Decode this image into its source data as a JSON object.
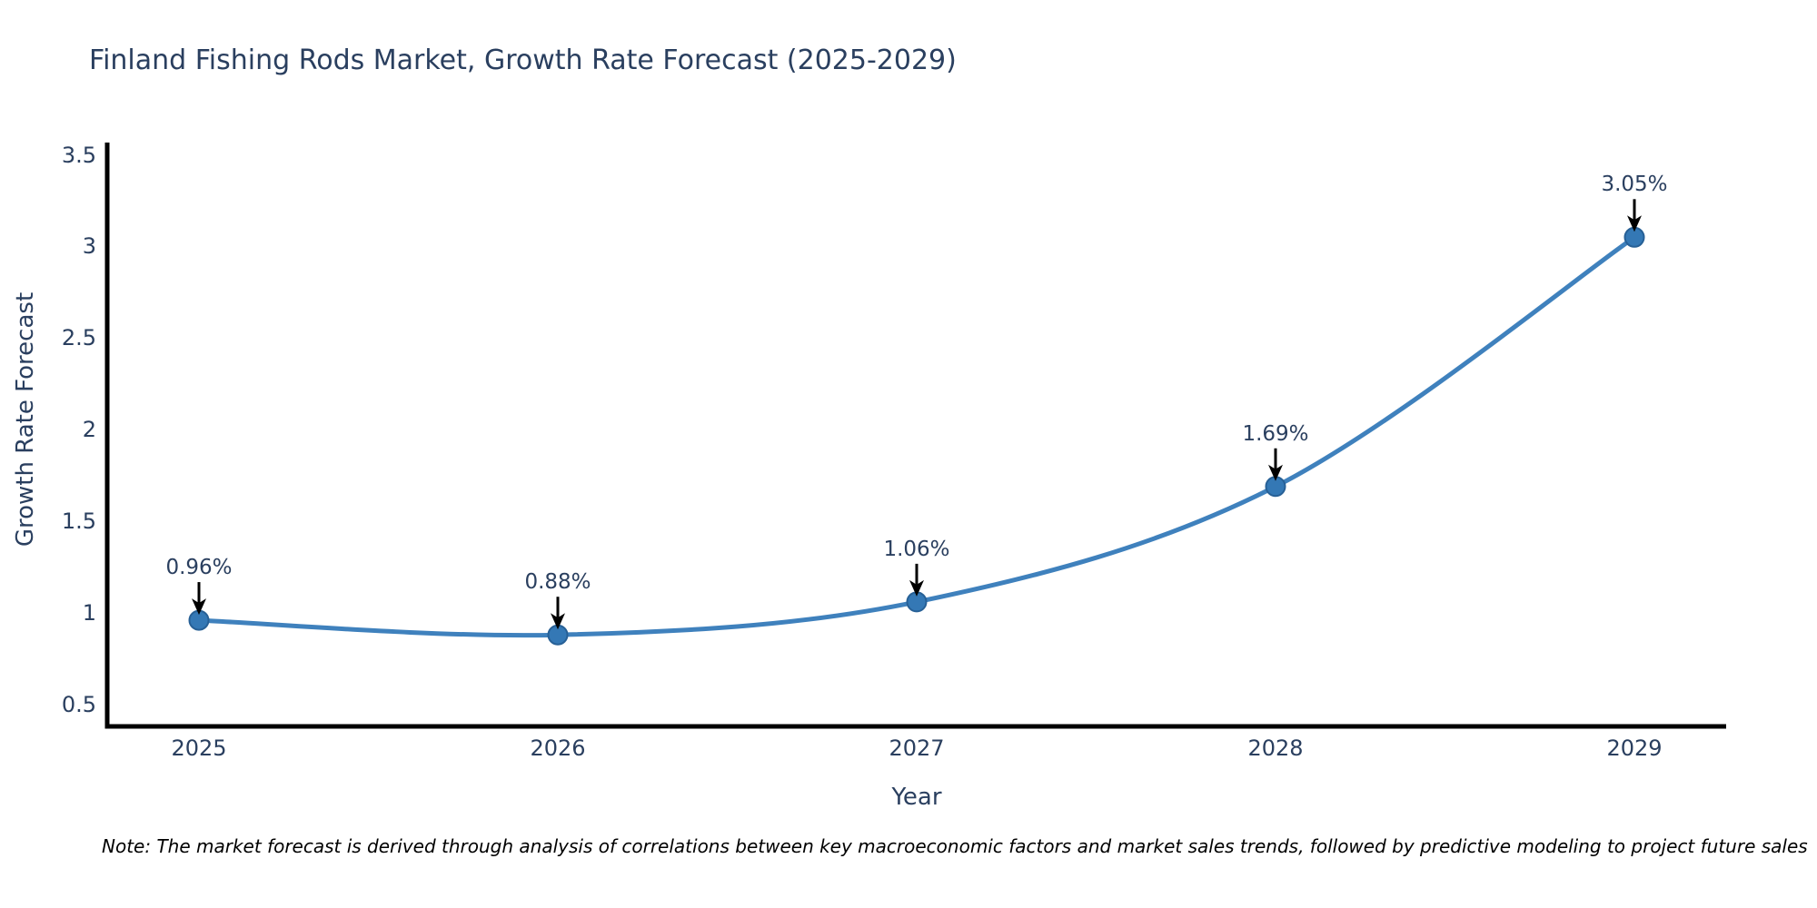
{
  "chart_data": {
    "type": "line",
    "title": "Finland Fishing Rods Market, Growth Rate Forecast (2025-2029)",
    "xlabel": "Year",
    "ylabel": "Growth Rate Forecast",
    "categories": [
      "2025",
      "2026",
      "2027",
      "2028",
      "2029"
    ],
    "values": [
      0.96,
      0.88,
      1.06,
      1.69,
      3.05
    ],
    "point_labels": [
      "0.96%",
      "0.88%",
      "1.06%",
      "1.69%",
      "3.05%"
    ],
    "yticks": [
      0.5,
      1,
      1.5,
      2,
      2.5,
      3,
      3.5
    ],
    "ytick_labels": [
      "0.5",
      "1",
      "1.5",
      "2",
      "2.5",
      "3",
      "3.5"
    ],
    "ylim": [
      0.38,
      3.58
    ],
    "grid": false,
    "legend_position": "none",
    "line_shape": "spline",
    "line_color": "#3f81bd",
    "marker_color": "#3478b5",
    "marker_edge_color": "#276096",
    "axis_color": "#000000",
    "text_color": "#2a3f5f",
    "annotation_arrow_color": "#000000",
    "note": "Note: The market forecast is derived through analysis of correlations between key macroeconomic factors and market sales trends, followed by predictive modeling to project future sales"
  }
}
